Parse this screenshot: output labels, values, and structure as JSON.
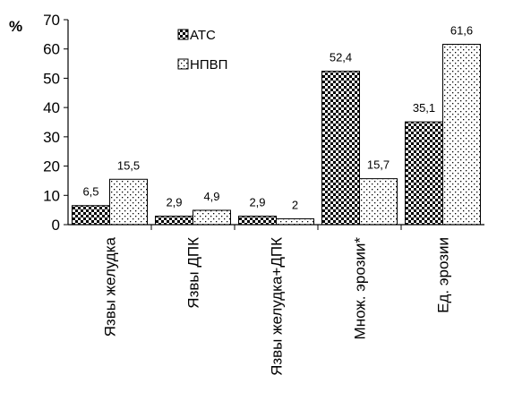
{
  "chart_data": {
    "type": "bar",
    "ylabel": "%",
    "ylim": [
      0,
      70
    ],
    "yticks": [
      0,
      10,
      20,
      30,
      40,
      50,
      60,
      70
    ],
    "categories": [
      "Язвы желудка",
      "Язвы ДПК",
      "Язвы желудка+ДПК",
      "Множ. эрозии*",
      "Ед. эрозии"
    ],
    "series": [
      {
        "name": "АТС",
        "values": [
          6.5,
          2.9,
          2.9,
          52.4,
          35.1
        ],
        "labels": [
          "6,5",
          "2,9",
          "2,9",
          "52,4",
          "35,1"
        ],
        "pattern": "checker"
      },
      {
        "name": "НПВП",
        "values": [
          15.5,
          4.9,
          2,
          15.7,
          61.6
        ],
        "labels": [
          "15,5",
          "4,9",
          "2",
          "15,7",
          "61,6"
        ],
        "pattern": "dots"
      }
    ],
    "legend": "top-left, inside plot",
    "grid": false
  }
}
